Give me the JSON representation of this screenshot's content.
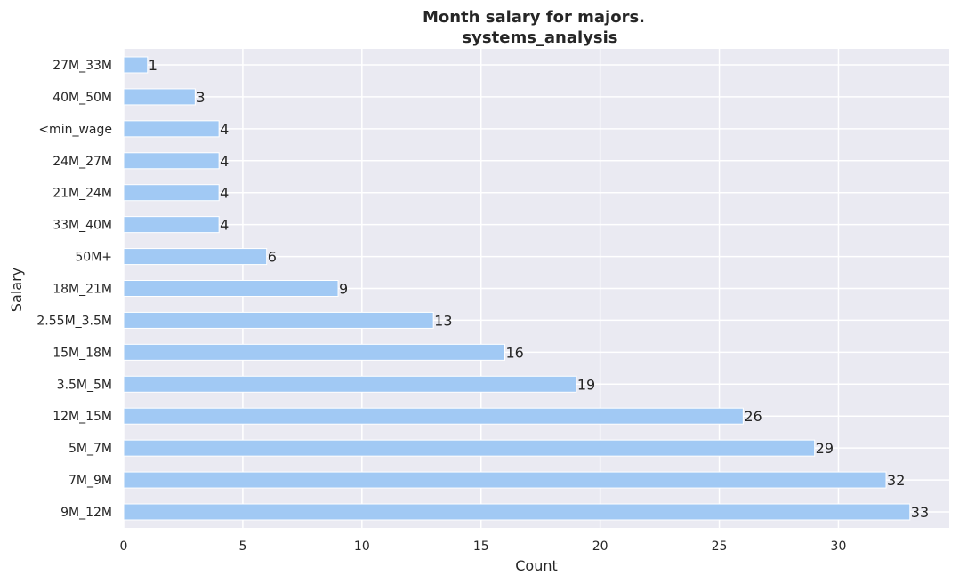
{
  "chart_data": {
    "type": "bar",
    "orientation": "horizontal",
    "title": "Month salary for majors.",
    "subtitle": "systems_analysis",
    "xlabel": "Count",
    "ylabel": "Salary",
    "categories": [
      "27M_33M",
      "40M_50M",
      "<min_wage",
      "24M_27M",
      "21M_24M",
      "33M_40M",
      "50M+",
      "18M_21M",
      "2.55M_3.5M",
      "15M_18M",
      "3.5M_5M",
      "12M_15M",
      "5M_7M",
      "7M_9M",
      "9M_12M"
    ],
    "values": [
      1,
      3,
      4,
      4,
      4,
      4,
      6,
      9,
      13,
      16,
      19,
      26,
      29,
      32,
      33
    ],
    "xlim": [
      0,
      34.65
    ],
    "xticks": [
      0,
      5,
      10,
      15,
      20,
      25,
      30
    ],
    "grid": true,
    "colors": {
      "bar": "#a1c9f4",
      "plot_background": "#eaeaf2",
      "grid": "#ffffff",
      "text": "#262626"
    }
  }
}
